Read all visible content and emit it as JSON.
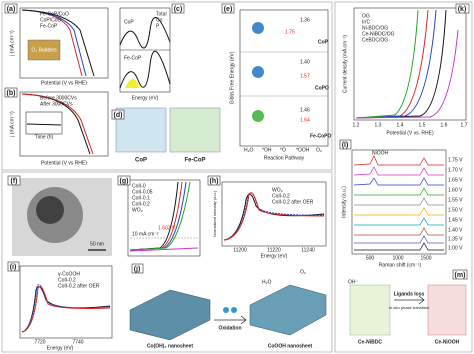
{
  "panels": {
    "a": {
      "label": "(a)",
      "legend": [
        "Fe-CoP/CoO",
        "CoP/CoO",
        "Fe-CoP"
      ],
      "inset": "O₂ Bubbles",
      "y_label": "j (mA cm⁻²)",
      "x_label": "Potential (V vs RHE)"
    },
    "b": {
      "label": "(b)",
      "legend": [
        "Before 3000CVs",
        "After 3000CVs"
      ],
      "inset_x": "Time (h)",
      "y_label": "j (mA cm⁻²)",
      "x_label": "Potential (V vs RHE)"
    },
    "c": {
      "label": "(c)",
      "top": "CoP",
      "bottom": "Fe-CoP",
      "legend": [
        "Total",
        "Co",
        "P"
      ],
      "x_label": "Energy (eV)"
    },
    "d": {
      "label": "(d)",
      "left": "CoP",
      "right": "Fe-CoP"
    },
    "e": {
      "label": "(e)",
      "y_label": "Gibbs Free Energy (eV)",
      "x_label": "Reaction Pathway",
      "rows": [
        {
          "name": "CoP",
          "v1": "1.36",
          "v2": "1.75"
        },
        {
          "name": "CoPO",
          "v1": "1.40",
          "v2": "1.57"
        },
        {
          "name": "Fe-CoPO",
          "v1": "1.46",
          "v2": "1.64"
        }
      ],
      "steps": [
        "H₂O",
        "*OH",
        "*O",
        "*OOH",
        "O₂"
      ]
    },
    "f": {
      "label": "(f)",
      "scale": "50 nm"
    },
    "g": {
      "label": "(g)",
      "legend": [
        "CoII-0",
        "CoII-0.05",
        "CoII-0.1",
        "CoII-0.2",
        "WO₃"
      ],
      "note1": "1.603 V",
      "note2": "10 mA cm⁻²"
    },
    "h": {
      "label": "(h)",
      "legend": [
        "WO₃",
        "CoII-0.2",
        "CoII-0.2 after OER"
      ],
      "x_label": "Energy (eV)",
      "y_label": "Normalized intensity (a.u.)",
      "ticks": [
        "11200",
        "11220",
        "11240"
      ]
    },
    "i": {
      "label": "(i)",
      "legend": [
        "γ-CoOOH",
        "CoII-0.2",
        "CoII-0.2 after OER"
      ],
      "x_label": "Energy (eV)",
      "ticks": [
        "7720",
        "7740"
      ]
    },
    "j": {
      "label": "(j)",
      "left": "Co(OH)₂ nanosheet",
      "middle": "Oxidation",
      "right": "CoOOH nanosheet",
      "h2o": "H₂O",
      "o2": "O₂"
    },
    "k": {
      "label": "(k)",
      "legend": [
        "OG",
        "Ir/C",
        "Ni-BDC/OG",
        "Ce-NiBDC/OG",
        "CeBDC/OG"
      ],
      "y_label": "Current density (mA cm⁻²)",
      "x_label": "Potential (V vs. RHE)",
      "ticks": [
        "1.2",
        "1.3",
        "1.4",
        "1.5",
        "1.6",
        "1.7"
      ]
    },
    "l": {
      "label": "(l)",
      "peak": "NiOOH",
      "levels": [
        "1.75 V",
        "1.70 V",
        "1.65 V",
        "1.60 V",
        "1.55 V",
        "1.50 V",
        "1.45 V",
        "1.40 V",
        "1.35 V",
        "1.00 V"
      ],
      "x_label": "Raman shift (cm⁻¹)",
      "y_label": "Intensity (a.u.)",
      "ticks": [
        "500",
        "1000",
        "1500"
      ]
    },
    "m": {
      "label": "(m)",
      "oh": "OH⁻",
      "arrow1": "Ligands loss",
      "arrow2": "In-situ phase transition",
      "left": "Ce-NiBDC",
      "right": "Ce-NiOOH"
    }
  }
}
